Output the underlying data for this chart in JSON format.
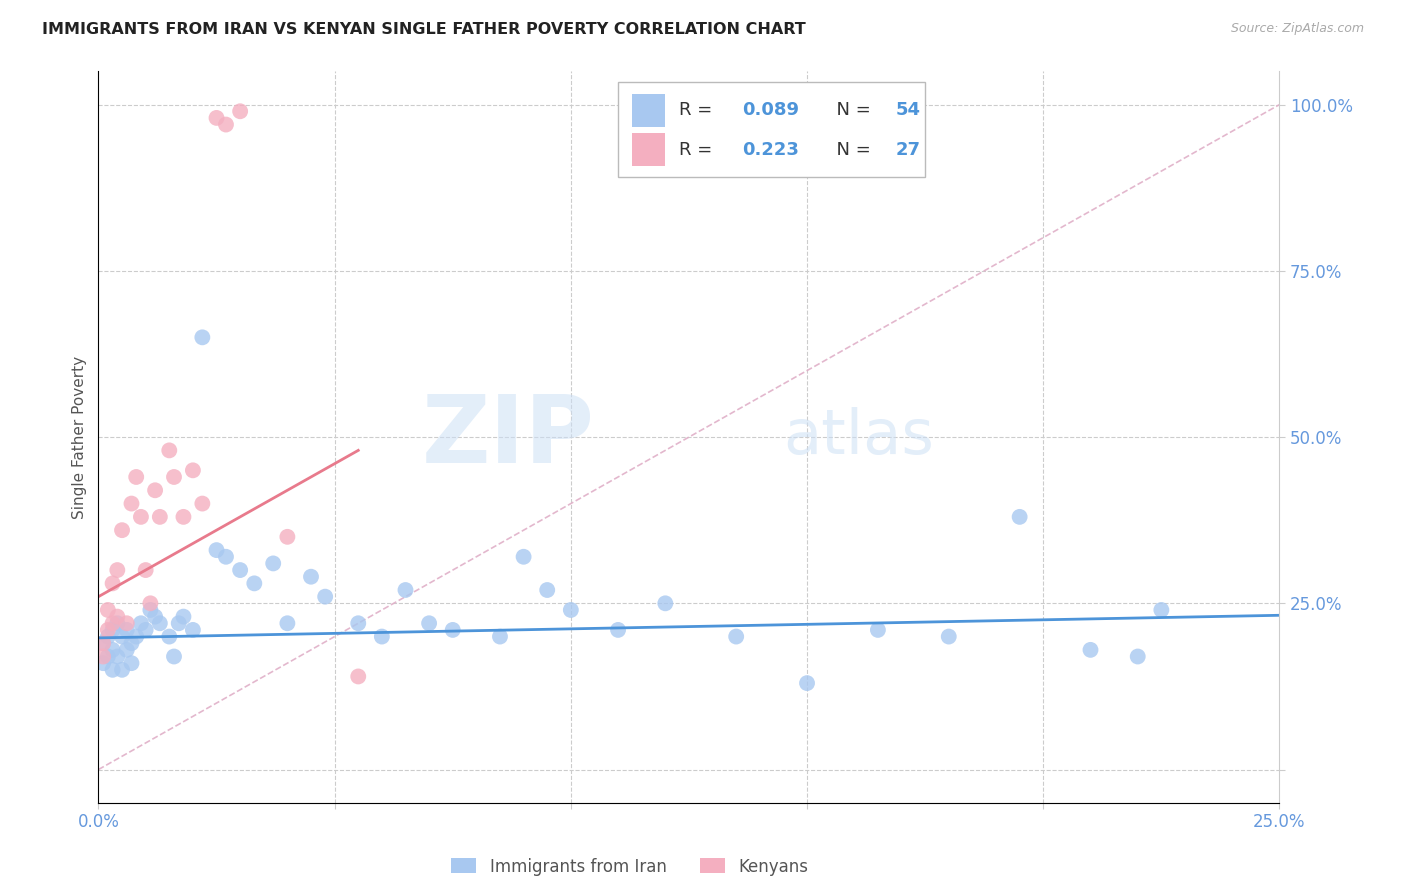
{
  "title": "IMMIGRANTS FROM IRAN VS KENYAN SINGLE FATHER POVERTY CORRELATION CHART",
  "source": "Source: ZipAtlas.com",
  "ylabel": "Single Father Poverty",
  "xlim": [
    0.0,
    0.25
  ],
  "ylim": [
    -0.05,
    1.05
  ],
  "legend_blue_label": "Immigrants from Iran",
  "legend_pink_label": "Kenyans",
  "legend_blue_r": "0.089",
  "legend_blue_n": "54",
  "legend_pink_r": "0.223",
  "legend_pink_n": "27",
  "blue_color": "#a8c8f0",
  "pink_color": "#f4afc0",
  "blue_line_color": "#4d94d9",
  "pink_line_color": "#e87a8c",
  "diag_line_color": "#e0b0c8",
  "watermark_zip": "ZIP",
  "watermark_atlas": "atlas",
  "grid_color": "#cccccc",
  "title_color": "#222222",
  "axis_label_color": "#555555",
  "right_axis_color": "#6699dd",
  "text_color_dark": "#333333",
  "blue_scatter_x": [
    0.001,
    0.001,
    0.002,
    0.002,
    0.003,
    0.003,
    0.003,
    0.004,
    0.004,
    0.005,
    0.005,
    0.006,
    0.006,
    0.007,
    0.007,
    0.008,
    0.009,
    0.01,
    0.011,
    0.012,
    0.013,
    0.015,
    0.016,
    0.017,
    0.018,
    0.02,
    0.022,
    0.025,
    0.027,
    0.03,
    0.033,
    0.037,
    0.04,
    0.045,
    0.048,
    0.055,
    0.06,
    0.065,
    0.07,
    0.075,
    0.085,
    0.09,
    0.095,
    0.1,
    0.11,
    0.12,
    0.135,
    0.15,
    0.165,
    0.18,
    0.195,
    0.21,
    0.22,
    0.225
  ],
  "blue_scatter_y": [
    0.19,
    0.16,
    0.2,
    0.17,
    0.21,
    0.18,
    0.15,
    0.22,
    0.17,
    0.2,
    0.15,
    0.21,
    0.18,
    0.19,
    0.16,
    0.2,
    0.22,
    0.21,
    0.24,
    0.23,
    0.22,
    0.2,
    0.17,
    0.22,
    0.23,
    0.21,
    0.65,
    0.33,
    0.32,
    0.3,
    0.28,
    0.31,
    0.22,
    0.29,
    0.26,
    0.22,
    0.2,
    0.27,
    0.22,
    0.21,
    0.2,
    0.32,
    0.27,
    0.24,
    0.21,
    0.25,
    0.2,
    0.13,
    0.21,
    0.2,
    0.38,
    0.18,
    0.17,
    0.24
  ],
  "pink_scatter_x": [
    0.001,
    0.001,
    0.002,
    0.002,
    0.003,
    0.003,
    0.004,
    0.004,
    0.005,
    0.006,
    0.007,
    0.008,
    0.009,
    0.01,
    0.011,
    0.012,
    0.013,
    0.015,
    0.016,
    0.018,
    0.02,
    0.022,
    0.025,
    0.027,
    0.03,
    0.04,
    0.055
  ],
  "pink_scatter_y": [
    0.19,
    0.17,
    0.21,
    0.24,
    0.22,
    0.28,
    0.23,
    0.3,
    0.36,
    0.22,
    0.4,
    0.44,
    0.38,
    0.3,
    0.25,
    0.42,
    0.38,
    0.48,
    0.44,
    0.38,
    0.45,
    0.4,
    0.98,
    0.97,
    0.99,
    0.35,
    0.14
  ],
  "blue_trendline_x": [
    0.0,
    0.25
  ],
  "blue_trendline_y": [
    0.198,
    0.232
  ],
  "pink_trendline_x": [
    0.0,
    0.055
  ],
  "pink_trendline_y": [
    0.26,
    0.48
  ],
  "diag_line_x": [
    0.0,
    0.25
  ],
  "diag_line_y": [
    0.0,
    1.0
  ]
}
